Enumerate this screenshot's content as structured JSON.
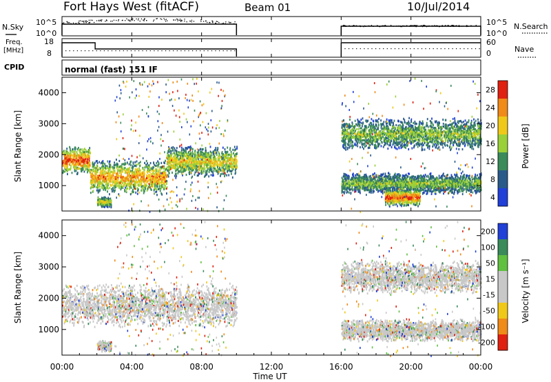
{
  "header": {
    "station": "Fort Hays West (fitACF)",
    "beam": "Beam 01",
    "date": "10/Jul/2014"
  },
  "strips": {
    "nsky_label": "N.Sky",
    "nsearch_label": "N.Search",
    "freq_label_1": "Freq.",
    "freq_label_2": "[MHz]",
    "nave_label": "Nave",
    "cpid_label": "CPID",
    "cpid_value": "normal (fast) 151 IF",
    "noise_left_ticks": [
      "10^5",
      "10^0"
    ],
    "noise_right_ticks": [
      "10^5",
      "10^0"
    ],
    "freq_ticks": [
      "18",
      "8"
    ],
    "nave_ticks": [
      "60",
      "0"
    ]
  },
  "colors": {
    "power": [
      "#2040d8",
      "#2a5a8a",
      "#3a8a5a",
      "#9ad038",
      "#f0c818",
      "#f08a18",
      "#e02010"
    ],
    "velocity": [
      "#e02010",
      "#f08a18",
      "#f0c818",
      "#c8c8c8",
      "#c8c8c8",
      "#60c040",
      "#3a8a5a",
      "#2040d8"
    ]
  },
  "chart_data": [
    {
      "type": "heatmap",
      "name": "power",
      "ylabel": "Slant Range [km]",
      "yticks": [
        "4000",
        "3000",
        "2000",
        "1000"
      ],
      "colorbar_label": "Power [dB]",
      "colorbar_ticks": [
        "28",
        "24",
        "20",
        "16",
        "12",
        "8",
        "4"
      ],
      "ylim": [
        180,
        4500
      ],
      "xlim": [
        0,
        24
      ],
      "bands": [
        {
          "t0": 0.0,
          "t1": 1.6,
          "r0": 1600,
          "r1": 2400,
          "peak": 1850,
          "level": 6
        },
        {
          "t0": 1.6,
          "t1": 6.0,
          "r0": 1000,
          "r1": 2000,
          "peak": 1300,
          "level": 5
        },
        {
          "t0": 6.0,
          "t1": 10.0,
          "r0": 1500,
          "r1": 2400,
          "peak": 1800,
          "level": 4
        },
        {
          "t0": 2.0,
          "t1": 2.8,
          "r0": 350,
          "r1": 650,
          "peak": 500,
          "level": 4
        },
        {
          "t0": 16.0,
          "t1": 24.0,
          "r0": 2300,
          "r1": 3200,
          "peak": 2700,
          "level": 3
        },
        {
          "t0": 16.0,
          "t1": 24.0,
          "r0": 800,
          "r1": 1400,
          "peak": 1100,
          "level": 3
        },
        {
          "t0": 18.5,
          "t1": 20.5,
          "r0": 450,
          "r1": 950,
          "peak": 650,
          "level": 6
        }
      ]
    },
    {
      "type": "heatmap",
      "name": "velocity",
      "ylabel": "Slant Range [km]",
      "yticks": [
        "4000",
        "3000",
        "2000",
        "1000"
      ],
      "xlabel": "Time UT",
      "xticks": [
        "00:00",
        "04:00",
        "08:00",
        "12:00",
        "16:00",
        "20:00",
        "00:00"
      ],
      "colorbar_label": "Velocity [m s⁻¹]",
      "colorbar_ticks": [
        "200",
        "100",
        "50",
        "15",
        "-15",
        "-50",
        "-100",
        "-200"
      ],
      "ylim": [
        180,
        4500
      ],
      "xlim": [
        0,
        24
      ],
      "bands": [
        {
          "t0": 0.0,
          "t1": 10.0,
          "r0": 1200,
          "r1": 2400,
          "peak": 1800,
          "level": 3
        },
        {
          "t0": 2.0,
          "t1": 2.8,
          "r0": 350,
          "r1": 650,
          "peak": 500,
          "level": 3
        },
        {
          "t0": 16.0,
          "t1": 24.0,
          "r0": 2300,
          "r1": 3200,
          "peak": 2700,
          "level": 3
        },
        {
          "t0": 16.0,
          "t1": 24.0,
          "r0": 700,
          "r1": 1300,
          "peak": 1000,
          "level": 3
        }
      ]
    }
  ]
}
